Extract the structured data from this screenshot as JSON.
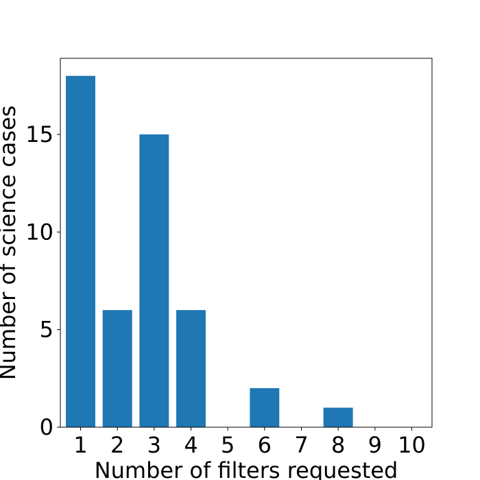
{
  "chart_data": {
    "type": "bar",
    "categories": [
      "1",
      "2",
      "3",
      "4",
      "5",
      "6",
      "7",
      "8",
      "9",
      "10"
    ],
    "values": [
      18,
      6,
      15,
      6,
      0,
      2,
      0,
      1,
      0,
      0
    ],
    "title": "",
    "xlabel": "Number of filters requested",
    "ylabel": "Number of science cases",
    "ylim": [
      0,
      18.9
    ],
    "yticks": [
      0,
      5,
      10,
      15
    ],
    "bar_color": "#1f77b4",
    "grid": false,
    "legend": "none"
  }
}
